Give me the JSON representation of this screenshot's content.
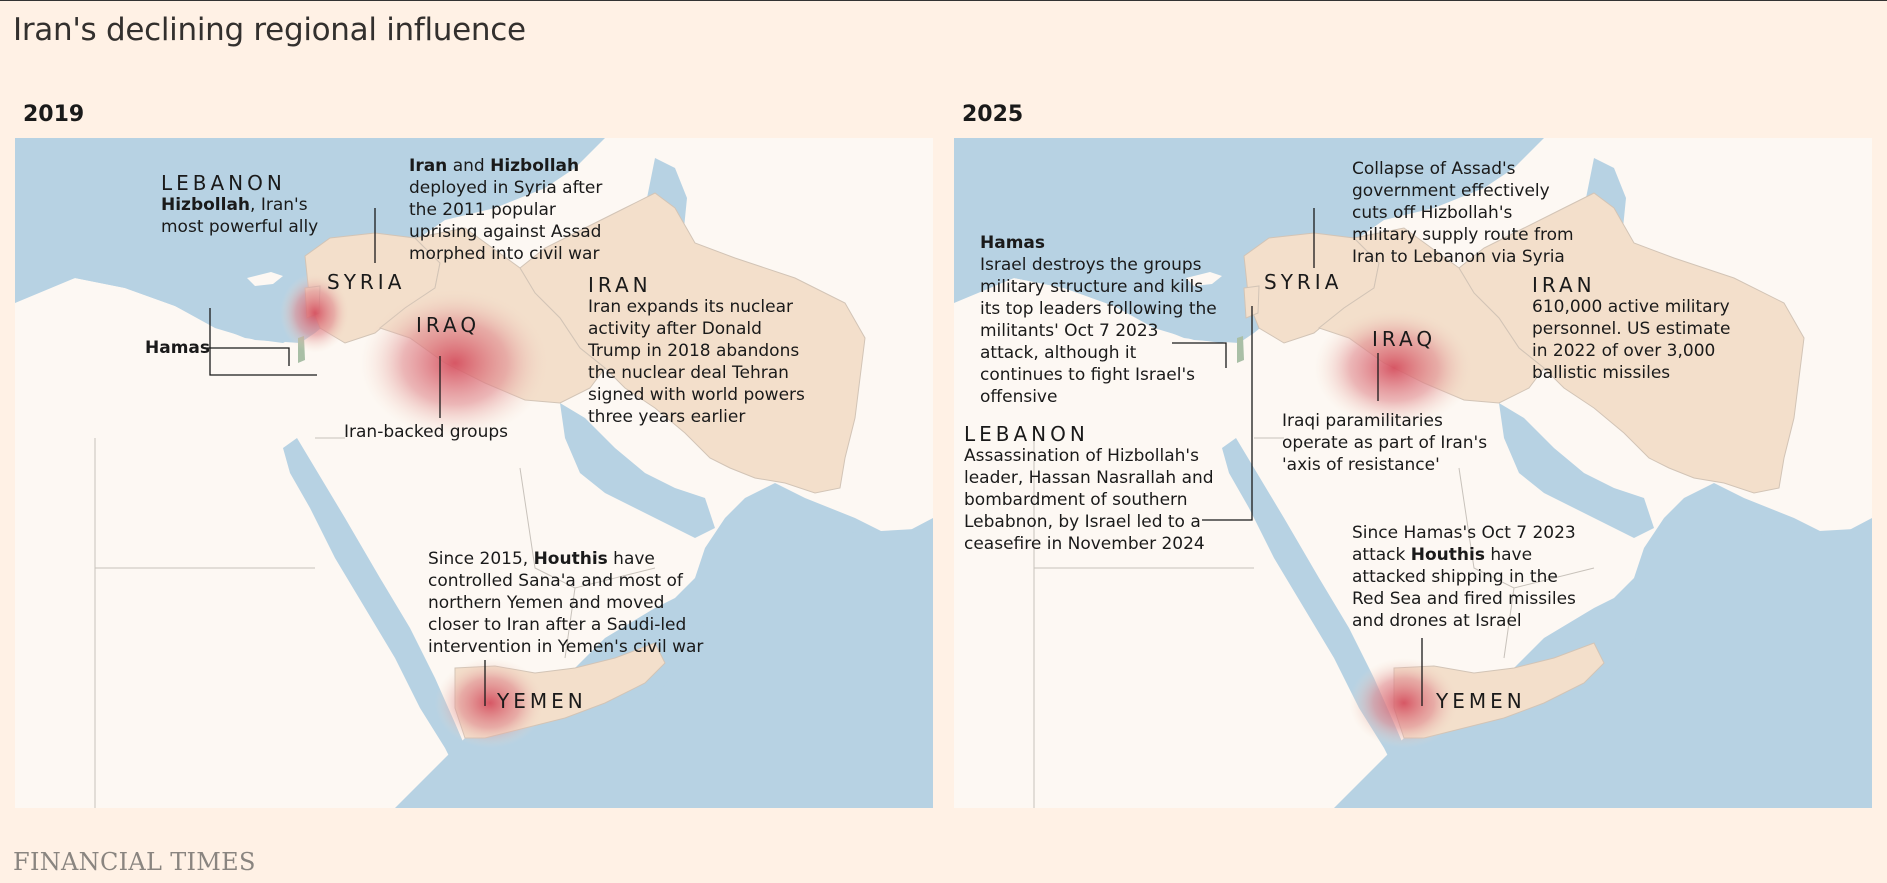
{
  "title": "Iran's declining regional influence",
  "source": "FINANCIAL TIMES",
  "colors": {
    "background": "#FFF1E5",
    "sea": "#B7D2E3",
    "land": "#FDF8F3",
    "axis_country": "#F3DFCB",
    "influence": "#D5505F"
  },
  "panels": [
    {
      "year": "2019",
      "countries": {
        "lebanon": "LEBANON",
        "syria": "SYRIA",
        "iraq": "IRAQ",
        "iran": "IRAN",
        "yemen": "YEMEN"
      },
      "notes": {
        "lebanon_bold": "Hizbollah",
        "lebanon_rest": ", Iran's",
        "lebanon_line2": "most powerful ally",
        "hamas": "Hamas",
        "syria_bold1": "Iran",
        "syria_and": " and ",
        "syria_bold2": "Hizbollah",
        "syria_l2": "deployed in Syria after",
        "syria_l3": "the 2011 popular",
        "syria_l4": "uprising against Assad",
        "syria_l5": "morphed into civil war",
        "iran_l1": "Iran expands its nuclear",
        "iran_l2": "activity after Donald",
        "iran_l3": "Trump in 2018 abandons",
        "iran_l4": "the nuclear deal Tehran",
        "iran_l5": "signed with world powers",
        "iran_l6": "three years earlier",
        "iraq": "Iran-backed groups",
        "yemen_l1a": "Since 2015, ",
        "yemen_l1b": "Houthis",
        "yemen_l1c": " have",
        "yemen_l2": "controlled Sana'a and most of",
        "yemen_l3": "northern Yemen and moved",
        "yemen_l4": "closer to Iran after a Saudi-led",
        "yemen_l5": "intervention in Yemen's civil war"
      }
    },
    {
      "year": "2025",
      "countries": {
        "lebanon": "LEBANON",
        "syria": "SYRIA",
        "iraq": "IRAQ",
        "iran": "IRAN",
        "yemen": "YEMEN"
      },
      "notes": {
        "hamas": "Hamas",
        "hamas_l1": "Israel destroys the groups",
        "hamas_l2": "military structure and kills",
        "hamas_l3": "its top leaders following the",
        "hamas_l4": "militants' Oct 7 2023",
        "hamas_l5": "attack, although it",
        "hamas_l6": "continues to fight Israel's",
        "hamas_l7": "offensive",
        "lebanon_l1": "Assassination of Hizbollah's",
        "lebanon_l2": "leader, Hassan Nasrallah and",
        "lebanon_l3": "bombardment of southern",
        "lebanon_l4": "Lebabnon, by Israel led to a",
        "lebanon_l5": "ceasefire in November 2024",
        "syria_l1": "Collapse of Assad's",
        "syria_l2": "government effectively",
        "syria_l3": "cuts off Hizbollah's",
        "syria_l4": "military supply route from",
        "syria_l5": "Iran to Lebanon via Syria",
        "iran_l1": "610,000 active military",
        "iran_l2": "personnel. US estimate",
        "iran_l3": "in 2022 of over 3,000",
        "iran_l4": "ballistic missiles",
        "iraq_l1": "Iraqi paramilitaries",
        "iraq_l2": "operate as part of Iran's",
        "iraq_l3": "'axis of resistance'",
        "yemen_l1": "Since Hamas's Oct 7 2023",
        "yemen_l2a": "attack ",
        "yemen_l2b": "Houthis",
        "yemen_l2c": " have",
        "yemen_l3": "attacked shipping in the",
        "yemen_l4": "Red Sea and fired missiles",
        "yemen_l5": "and drones at Israel"
      }
    }
  ]
}
